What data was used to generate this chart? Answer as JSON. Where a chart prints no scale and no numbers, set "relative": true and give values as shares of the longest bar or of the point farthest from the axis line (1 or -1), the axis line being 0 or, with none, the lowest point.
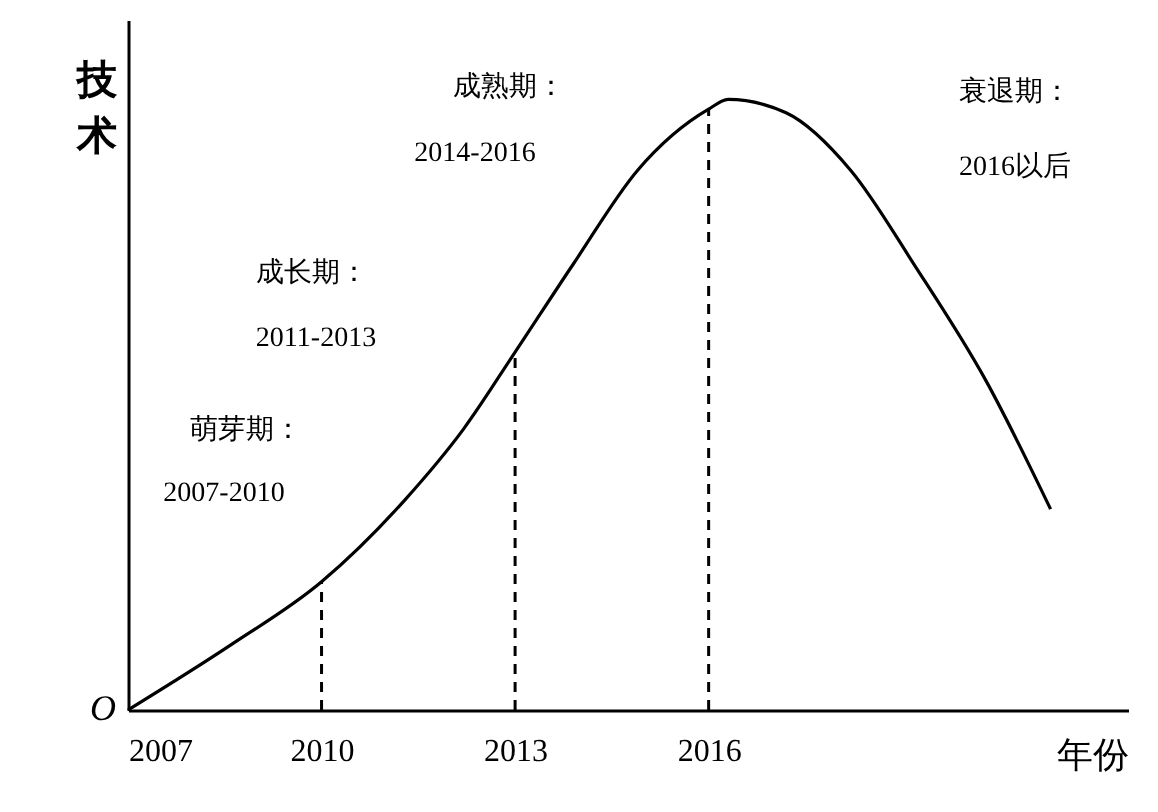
{
  "chart_data": {
    "type": "line",
    "relative": true,
    "xlabel": "年份",
    "ylabel": "技术",
    "x": [
      2007,
      2008.6,
      2010,
      2011.3,
      2012.2,
      2013,
      2013.9,
      2014.9,
      2016,
      2016.3,
      2017.2,
      2018.2,
      2019.2,
      2020.3,
      2021.3
    ],
    "series": [
      {
        "color": "#000000",
        "values": [
          0,
          0.107,
          0.21,
          0.345,
          0.46,
          0.586,
          0.73,
          0.884,
          0.984,
          1,
          0.978,
          0.884,
          0.727,
          0.539,
          0.329
        ]
      }
    ],
    "xlim": [
      2007,
      2022.5
    ],
    "xticks": [
      2007,
      2010,
      2013,
      2016
    ],
    "grid": false,
    "marker": "none",
    "ref_lines": [
      {
        "axis": "x",
        "value": 2010,
        "line_style": "dashed"
      },
      {
        "axis": "x",
        "value": 2013,
        "line_style": "dashed"
      },
      {
        "axis": "x",
        "value": 2016,
        "line_style": "dashed"
      }
    ],
    "annotations": [
      "O",
      "萌芽期：",
      "2007-2010",
      "成长期：",
      "2011-2013",
      "成熟期：",
      "2014-2016",
      "衰退期：",
      "2016以后"
    ]
  }
}
